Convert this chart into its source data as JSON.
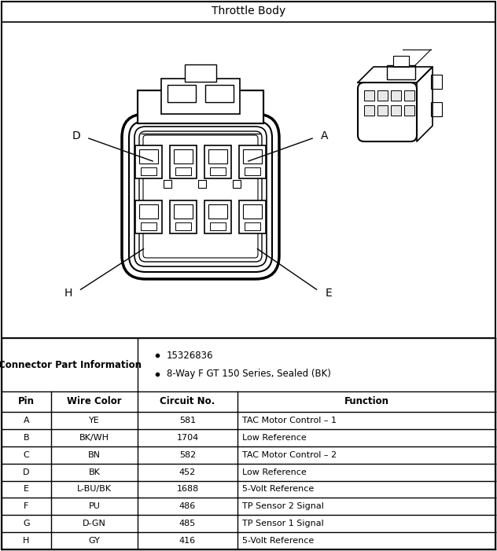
{
  "title": "Throttle Body",
  "connector_info_label": "Connector Part Information",
  "connector_info_bullets": [
    "15326836",
    "8-Way F GT 150 Series, Sealed (BK)"
  ],
  "table_headers": [
    "Pin",
    "Wire Color",
    "Circuit No.",
    "Function"
  ],
  "table_rows": [
    [
      "A",
      "YE",
      "581",
      "TAC Motor Control – 1"
    ],
    [
      "B",
      "BK/WH",
      "1704",
      "Low Reference"
    ],
    [
      "C",
      "BN",
      "582",
      "TAC Motor Control – 2"
    ],
    [
      "D",
      "BK",
      "452",
      "Low Reference"
    ],
    [
      "E",
      "L-BU/BK",
      "1688",
      "5-Volt Reference"
    ],
    [
      "F",
      "PU",
      "486",
      "TP Sensor 2 Signal"
    ],
    [
      "G",
      "D-GN",
      "485",
      "TP Sensor 1 Signal"
    ],
    [
      "H",
      "GY",
      "416",
      "5-Volt Reference"
    ]
  ],
  "bg_color": "#ffffff",
  "border_color": "#000000",
  "fig_w": 6.32,
  "fig_h": 7.01,
  "dpi": 100
}
